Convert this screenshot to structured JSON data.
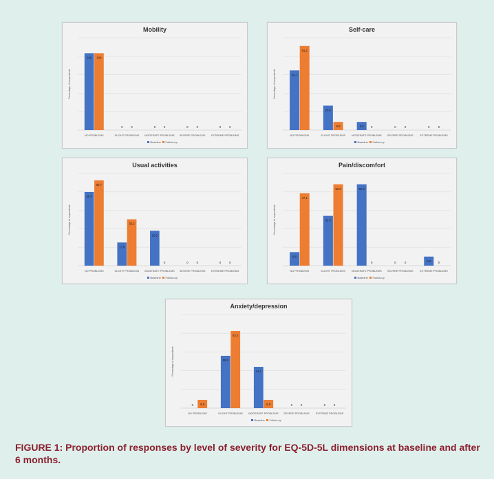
{
  "figure": {
    "caption": "FIGURE 1: Proportion of responses by level of severity for EQ-5D-5L dimensions at baseline and after 6 months.",
    "colors": {
      "baseline": "#4472c4",
      "followup": "#ed7d31",
      "panel_bg": "#f2f2f2",
      "caption": "#8b1f2f",
      "page_bg": "#dff0ec"
    }
  },
  "chart_data": [
    {
      "type": "bar",
      "title": "Mobility",
      "ylabel": "Percentage of respondents",
      "categories": [
        "NO PROBLEMS",
        "SLIGHT PROBLEMS",
        "MODERATE PROBLEMS",
        "SEVERE PROBLEMS",
        "EXTREME PROBLEMS"
      ],
      "series": [
        {
          "name": "Baseline",
          "values": [
            100,
            0,
            0,
            0,
            0
          ],
          "labels": [
            "100",
            "0",
            "0",
            "0",
            "0"
          ]
        },
        {
          "name": "Follow-up",
          "values": [
            100,
            0,
            0,
            0,
            0
          ],
          "labels": [
            "100",
            "0",
            "0",
            "0",
            "0"
          ]
        }
      ],
      "ylim": [
        0,
        120
      ],
      "grid": true,
      "legend": "bottom"
    },
    {
      "type": "bar",
      "title": "Self-care",
      "ylabel": "Percentage of respondents",
      "categories": [
        "NO PROBLEMS",
        "SLIGHT PROBLEMS",
        "MODERATE PROBLEMS",
        "SEVERE PROBLEMS",
        "EXTREME PROBLEMS"
      ],
      "series": [
        {
          "name": "Baseline",
          "values": [
            64.7,
            26.5,
            8.8,
            0,
            0
          ],
          "labels": [
            "64.7",
            "26.5",
            "8.8",
            "0",
            "0"
          ]
        },
        {
          "name": "Follow-up",
          "values": [
            91.2,
            8.8,
            0,
            0,
            0
          ],
          "labels": [
            "91.2",
            "8.8",
            "0",
            "0",
            "0"
          ]
        }
      ],
      "ylim": [
        0,
        100
      ],
      "grid": true,
      "legend": "bottom"
    },
    {
      "type": "bar",
      "title": "Usual activities",
      "ylabel": "Percentage of respondents",
      "categories": [
        "NO PROBLEMS",
        "SLIGHT PROBLEMS",
        "MODERATE PROBLEMS",
        "SEVERE PROBLEMS",
        "EXTREME PROBLEMS"
      ],
      "series": [
        {
          "name": "Baseline",
          "values": [
            55.9,
            17.6,
            26.5,
            0,
            0
          ],
          "labels": [
            "55.9",
            "17.6",
            "26.5",
            "0",
            "0"
          ]
        },
        {
          "name": "Follow-up",
          "values": [
            64.7,
            35.2,
            0,
            0,
            0
          ],
          "labels": [
            "64.7",
            "35.2",
            "0",
            "0",
            "0"
          ]
        }
      ],
      "ylim": [
        0,
        70
      ],
      "grid": true,
      "legend": "bottom"
    },
    {
      "type": "bar",
      "title": "Pain/discomfort",
      "ylabel": "Percentage of respondents",
      "categories": [
        "NO PROBLEMS",
        "SLIGHT PROBLEMS",
        "MODERATE PROBLEMS",
        "SEVERE PROBLEMS",
        "EXTREME PROBLEMS"
      ],
      "series": [
        {
          "name": "Baseline",
          "values": [
            8.8,
            32.4,
            52.9,
            0,
            5.9
          ],
          "labels": [
            "8.8",
            "32.4",
            "52.9",
            "0",
            "5.9"
          ]
        },
        {
          "name": "Follow-up",
          "values": [
            47.1,
            52.9,
            0,
            0,
            0
          ],
          "labels": [
            "47.1",
            "52.9",
            "0",
            "0",
            "0"
          ]
        }
      ],
      "ylim": [
        0,
        60
      ],
      "grid": true,
      "legend": "bottom"
    },
    {
      "type": "bar",
      "title": "Anxiety/depression",
      "ylabel": "Percentage of respondents",
      "categories": [
        "NO PROBLEMS",
        "SLIGHT PROBLEMS",
        "MODERATE PROBLEMS",
        "SEVERE PROBLEMS",
        "EXTREME PROBLEMS"
      ],
      "series": [
        {
          "name": "Baseline",
          "values": [
            0,
            55.9,
            44.1,
            0,
            0
          ],
          "labels": [
            "0",
            "55.9",
            "44.1",
            "0",
            "0"
          ]
        },
        {
          "name": "Follow-up",
          "values": [
            8.8,
            82.4,
            8.8,
            0,
            0
          ],
          "labels": [
            "8.8",
            "82.4",
            "8.8",
            "0",
            "0"
          ]
        }
      ],
      "ylim": [
        0,
        100
      ],
      "grid": true,
      "legend": "bottom"
    }
  ]
}
